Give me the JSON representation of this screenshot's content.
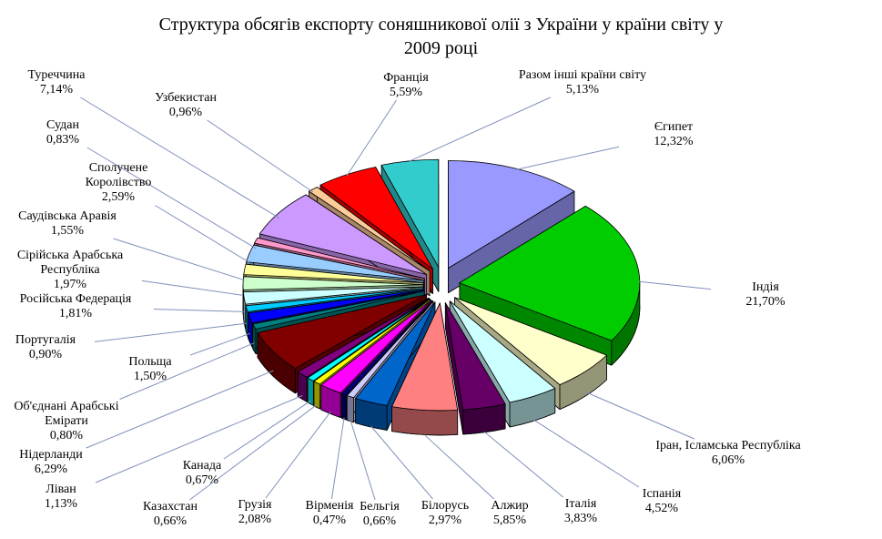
{
  "title_lines": [
    "Структура обсягів експорту соняшникової олії  з України у країни світу у",
    "2009 році"
  ],
  "chart_data": {
    "type": "pie",
    "style": "3d-exploded-pie",
    "title": "Структура обсягів експорту соняшникової олії з України у країни світу у 2009 році",
    "unit": "%",
    "legend_position": "none",
    "labels_style": "callout labels with leader lines, percent values with comma decimals",
    "start_angle_deg": 0,
    "direction": "clockwise",
    "slices": [
      {
        "label": "Єгипет",
        "value": 12.32,
        "pct_label": "12,32%",
        "color": "#9999FF"
      },
      {
        "label": "Індія",
        "value": 21.7,
        "pct_label": "21,70%",
        "color": "#00CC00"
      },
      {
        "label": "Іран, Ісламська Республіка",
        "value": 6.06,
        "pct_label": "6,06%",
        "color": "#FFFFCC"
      },
      {
        "label": "Іспанія",
        "value": 4.52,
        "pct_label": "4,52%",
        "color": "#CCFFFF"
      },
      {
        "label": "Італія",
        "value": 3.83,
        "pct_label": "3,83%",
        "color": "#660066"
      },
      {
        "label": "Алжир",
        "value": 5.85,
        "pct_label": "5,85%",
        "color": "#FF8080"
      },
      {
        "label": "Білорусь",
        "value": 2.97,
        "pct_label": "2,97%",
        "color": "#0066CC"
      },
      {
        "label": "Бельгія",
        "value": 0.66,
        "pct_label": "0,66%",
        "color": "#CCCCFF"
      },
      {
        "label": "Вірменія",
        "value": 0.47,
        "pct_label": "0,47%",
        "color": "#000080"
      },
      {
        "label": "Грузія",
        "value": 2.08,
        "pct_label": "2,08%",
        "color": "#FF00FF"
      },
      {
        "label": "Казахстан",
        "value": 0.66,
        "pct_label": "0,66%",
        "color": "#FFFF00"
      },
      {
        "label": "Канада",
        "value": 0.67,
        "pct_label": "0,67%",
        "color": "#00FFFF"
      },
      {
        "label": "Ліван",
        "value": 1.13,
        "pct_label": "1,13%",
        "color": "#800080"
      },
      {
        "label": "Нідерланди",
        "value": 6.29,
        "pct_label": "6,29%",
        "color": "#800000"
      },
      {
        "label": "Об'єднані Арабські Емірати",
        "value": 0.8,
        "pct_label": "0,80%",
        "color": "#008080"
      },
      {
        "label": "Польща",
        "value": 1.5,
        "pct_label": "1,50%",
        "color": "#0000FF"
      },
      {
        "label": "Португалія",
        "value": 0.9,
        "pct_label": "0,90%",
        "color": "#00CCFF"
      },
      {
        "label": "Російська Федерація",
        "value": 1.81,
        "pct_label": "1,81%",
        "color": "#CCFFFF"
      },
      {
        "label": "Сірійська Арабська Республіка",
        "value": 1.97,
        "pct_label": "1,97%",
        "color": "#CCFFCC"
      },
      {
        "label": "Саудівська Аравія",
        "value": 1.55,
        "pct_label": "1,55%",
        "color": "#FFFF99"
      },
      {
        "label": "Сполучене Королівство",
        "value": 2.59,
        "pct_label": "2,59%",
        "color": "#99CCFF"
      },
      {
        "label": "Судан",
        "value": 0.83,
        "pct_label": "0,83%",
        "color": "#FF99CC"
      },
      {
        "label": "Туреччина",
        "value": 7.14,
        "pct_label": "7,14%",
        "color": "#CC99FF"
      },
      {
        "label": "Узбекистан",
        "value": 0.96,
        "pct_label": "0,96%",
        "color": "#FFCC99"
      },
      {
        "label": "Франція",
        "value": 5.59,
        "pct_label": "5,59%",
        "color": "#FF0000"
      },
      {
        "label": "Разом інші країни світу",
        "value": 5.13,
        "pct_label": "5,13%",
        "color": "#33CCCC"
      }
    ]
  },
  "colors": {
    "background": "#FFFFFF",
    "text": "#000000",
    "slice_outline": "#000000",
    "leader_line": "#8090BC"
  }
}
